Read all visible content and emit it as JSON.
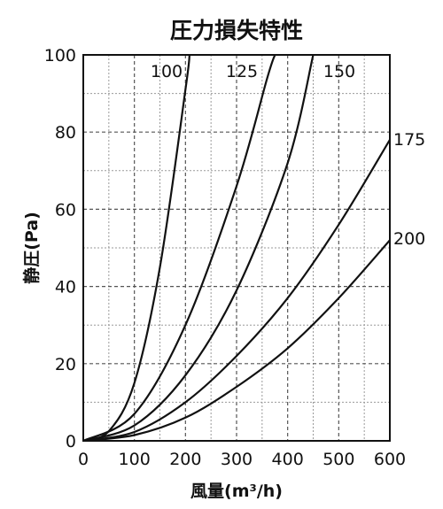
{
  "chart_data": {
    "type": "line",
    "title": "圧力損失特性",
    "xlabel": "風量(m³/h)",
    "ylabel": "静圧(Pa)",
    "xlim": [
      0,
      600
    ],
    "ylim": [
      0,
      100
    ],
    "x_ticks": [
      "0",
      "100",
      "200",
      "300",
      "400",
      "500",
      "600"
    ],
    "y_ticks": [
      "0",
      "20",
      "40",
      "60",
      "80",
      "100"
    ],
    "x_tick_values": [
      0,
      100,
      200,
      300,
      400,
      500,
      600
    ],
    "y_tick_values": [
      0,
      20,
      40,
      60,
      80,
      100
    ],
    "grid": true,
    "series": [
      {
        "name": "100",
        "x": [
          0,
          50,
          100,
          150,
          200,
          208
        ],
        "y": [
          0,
          2.5,
          15,
          45,
          91,
          100
        ]
      },
      {
        "name": "125",
        "x": [
          0,
          100,
          200,
          300,
          360,
          375
        ],
        "y": [
          0,
          7,
          30,
          66,
          94,
          100
        ]
      },
      {
        "name": "150",
        "x": [
          0,
          100,
          200,
          300,
          400,
          450
        ],
        "y": [
          0,
          4,
          17,
          39,
          72,
          100
        ]
      },
      {
        "name": "175",
        "x": [
          0,
          100,
          200,
          300,
          400,
          500,
          600
        ],
        "y": [
          0,
          2.3,
          10,
          22,
          37,
          56,
          78
        ]
      },
      {
        "name": "200",
        "x": [
          0,
          100,
          200,
          300,
          400,
          500,
          600
        ],
        "y": [
          0,
          1.5,
          6,
          14,
          24,
          37,
          52
        ]
      }
    ]
  }
}
